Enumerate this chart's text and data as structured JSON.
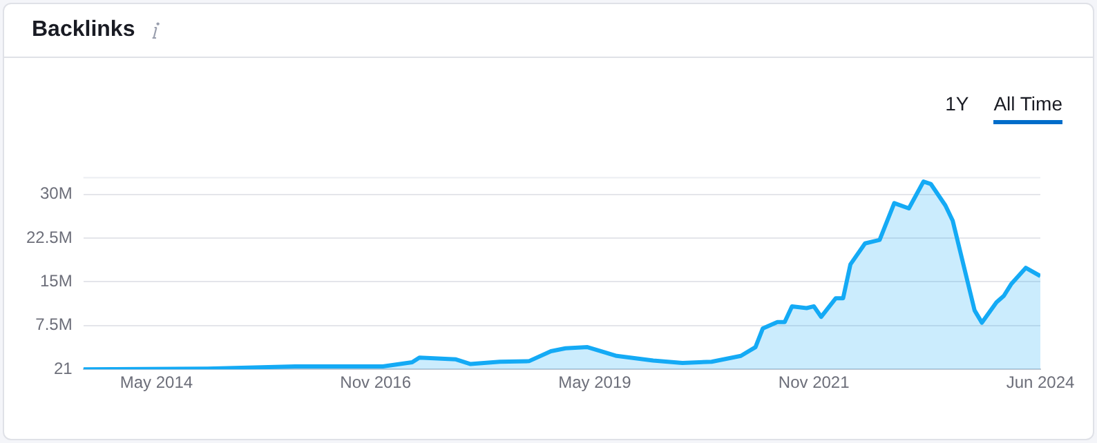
{
  "chart_data": {
    "type": "area",
    "title": "Backlinks",
    "annotations": [
      "1Y",
      "All Time"
    ],
    "x": [
      "2013-07",
      "2014-12",
      "2015-12",
      "2016-12",
      "2017-04",
      "2017-05",
      "2017-10",
      "2017-12",
      "2018-04",
      "2018-08",
      "2018-11",
      "2019-01",
      "2019-04",
      "2019-08",
      "2020-01",
      "2020-05",
      "2020-09",
      "2021-01",
      "2021-03",
      "2021-04",
      "2021-06",
      "2021-07",
      "2021-08",
      "2021-10",
      "2021-11",
      "2021-12",
      "2022-02",
      "2022-03",
      "2022-04",
      "2022-06",
      "2022-08",
      "2022-10",
      "2022-12",
      "2023-02",
      "2023-03",
      "2023-05",
      "2023-06",
      "2023-09",
      "2023-10",
      "2023-12",
      "2024-01",
      "2024-02",
      "2024-04",
      "2024-06"
    ],
    "series": [
      {
        "color": "#14aaf5",
        "values": [
          0,
          100000,
          500000,
          500000,
          1200000,
          2000000,
          1700000,
          900000,
          1300000,
          1400000,
          3100000,
          3600000,
          3800000,
          2300000,
          1500000,
          1100000,
          1300000,
          2300000,
          3800000,
          7000000,
          8100000,
          8100000,
          10800000,
          10500000,
          10800000,
          9000000,
          12200000,
          12200000,
          18000000,
          21600000,
          22200000,
          28500000,
          27600000,
          32200000,
          31800000,
          28100000,
          25500000,
          10100000,
          8000000,
          11500000,
          12600000,
          14600000,
          17400000,
          16000000
        ]
      }
    ],
    "xlim": [
      "2013-07",
      "2024-06"
    ],
    "xticks": [
      {
        "value": "2014-05",
        "label": "May 2014"
      },
      {
        "value": "2016-11",
        "label": "Nov 2016"
      },
      {
        "value": "2019-05",
        "label": "May 2019"
      },
      {
        "value": "2021-11",
        "label": "Nov 2021"
      },
      {
        "value": "2024-06",
        "label": "Jun 2024"
      }
    ],
    "ylim": [
      0,
      33000000
    ],
    "yticks": [
      21,
      {
        "value": 7500000,
        "label": "7.5M"
      },
      {
        "value": 15000000,
        "label": "15M"
      },
      {
        "value": 22500000,
        "label": "22.5M"
      },
      {
        "value": 30000000,
        "label": "30M"
      }
    ],
    "grid": "y",
    "legend": false,
    "marker": "none",
    "line_style": "solid"
  }
}
